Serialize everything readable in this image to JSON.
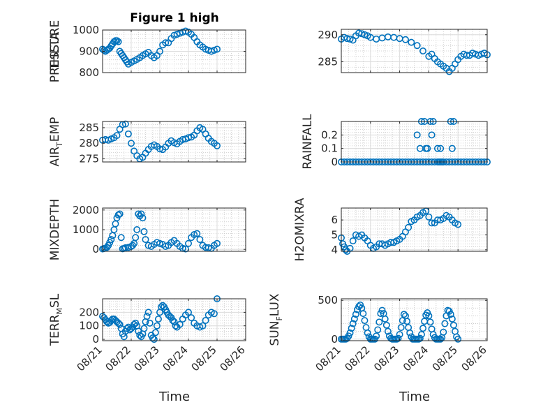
{
  "figure": {
    "title": "Figure 1 high",
    "xlabel": "Time",
    "marker_color": "#0072BD",
    "x_ticks": [
      "08/21",
      "08/22",
      "08/23",
      "08/24",
      "08/25",
      "08/26"
    ]
  },
  "chart_data": [
    {
      "type": "scatter",
      "title": "Figure 1 high",
      "ylabel": "PRESSURE",
      "xlim": [
        "08/21",
        "08/26"
      ],
      "ylim": [
        800,
        1000
      ],
      "yticks": [
        800,
        900,
        1000
      ],
      "grid": true,
      "series": [
        {
          "x": [
            0,
            0.05,
            0.1,
            0.15,
            0.2,
            0.25,
            0.3,
            0.35,
            0.4,
            0.45,
            0.5,
            0.55,
            0.6,
            0.65,
            0.7,
            0.75,
            0.8,
            0.85,
            0.9,
            1.0,
            1.1,
            1.2,
            1.3,
            1.4,
            1.5,
            1.6,
            1.7,
            1.8,
            1.9,
            2.0,
            2.1,
            2.2,
            2.3,
            2.4,
            2.5,
            2.6,
            2.7,
            2.8,
            2.9,
            3.0,
            3.1,
            3.2,
            3.3,
            3.4,
            3.5,
            3.6,
            3.7,
            3.8,
            3.9,
            4.0
          ],
          "y": [
            910,
            905,
            900,
            905,
            910,
            915,
            925,
            935,
            945,
            950,
            950,
            945,
            900,
            890,
            880,
            870,
            860,
            850,
            840,
            848,
            855,
            862,
            870,
            880,
            888,
            895,
            880,
            870,
            880,
            900,
            930,
            940,
            940,
            960,
            975,
            980,
            985,
            990,
            995,
            990,
            980,
            965,
            945,
            930,
            920,
            910,
            905,
            900,
            905,
            910
          ]
        }
      ]
    },
    {
      "type": "scatter",
      "ylabel": "THETA",
      "xlim": [
        "08/21",
        "08/26"
      ],
      "ylim": [
        283,
        291
      ],
      "yticks": [
        285,
        290
      ],
      "grid": true,
      "series": [
        {
          "x": [
            0,
            0.1,
            0.2,
            0.3,
            0.4,
            0.5,
            0.6,
            0.7,
            0.8,
            0.9,
            1.0,
            1.2,
            1.4,
            1.6,
            1.8,
            2.0,
            2.2,
            2.4,
            2.6,
            2.8,
            3.0,
            3.1,
            3.2,
            3.3,
            3.4,
            3.5,
            3.6,
            3.7,
            3.8,
            3.9,
            4.0,
            4.1,
            4.2,
            4.3,
            4.4,
            4.5,
            4.6,
            4.7,
            4.8,
            4.9,
            5.0
          ],
          "y": [
            289.2,
            289.5,
            289.3,
            289.2,
            289.0,
            289.8,
            290.3,
            290.2,
            290.0,
            289.8,
            289.5,
            289.2,
            289.4,
            289.6,
            289.5,
            289.3,
            289.1,
            288.6,
            288.0,
            287.0,
            286.0,
            286.4,
            285.6,
            285.0,
            284.6,
            284.2,
            283.8,
            283.2,
            283.8,
            284.6,
            285.4,
            286.0,
            286.4,
            286.2,
            286.2,
            286.6,
            286.4,
            286.2,
            286.4,
            286.6,
            286.3
          ]
        }
      ]
    },
    {
      "type": "scatter",
      "ylabel": "AIR_TEMP",
      "ylabel_subscript": "T",
      "xlim": [
        "08/21",
        "08/26"
      ],
      "ylim": [
        274,
        287
      ],
      "yticks": [
        275,
        280,
        285
      ],
      "grid": true,
      "series": [
        {
          "x": [
            0,
            0.1,
            0.2,
            0.3,
            0.4,
            0.5,
            0.6,
            0.7,
            0.8,
            0.9,
            1.0,
            1.1,
            1.2,
            1.3,
            1.4,
            1.5,
            1.6,
            1.7,
            1.8,
            1.9,
            2.0,
            2.1,
            2.2,
            2.3,
            2.4,
            2.5,
            2.6,
            2.7,
            2.8,
            2.9,
            3.0,
            3.1,
            3.2,
            3.3,
            3.4,
            3.5,
            3.6,
            3.7,
            3.8,
            3.9,
            4.0
          ],
          "y": [
            281.0,
            281.2,
            281.0,
            281.4,
            281.8,
            282.5,
            284.5,
            286.0,
            286.2,
            283.0,
            280.0,
            277.5,
            276.0,
            275.0,
            275.5,
            276.8,
            278.0,
            279.0,
            279.5,
            279.0,
            278.2,
            278.0,
            278.8,
            280.0,
            280.8,
            280.2,
            279.8,
            280.6,
            281.2,
            281.4,
            281.8,
            282.0,
            282.6,
            284.0,
            285.0,
            284.5,
            283.0,
            281.6,
            280.6,
            280.0,
            279.2
          ]
        }
      ]
    },
    {
      "type": "scatter",
      "ylabel": "RAINFALL",
      "xlim": [
        "08/21",
        "08/26"
      ],
      "ylim": [
        0,
        0.3
      ],
      "yticks": [
        0,
        0.1,
        0.2
      ],
      "grid": true,
      "series": [
        {
          "x": [
            0,
            0.1,
            0.2,
            0.3,
            0.4,
            0.5,
            0.6,
            0.7,
            0.8,
            0.9,
            1.0,
            1.1,
            1.2,
            1.3,
            1.4,
            1.5,
            1.6,
            1.7,
            1.8,
            1.9,
            2.0,
            2.1,
            2.2,
            2.3,
            2.4,
            2.5,
            2.6,
            2.7,
            2.8,
            2.9,
            3.0,
            3.1,
            3.2,
            3.3,
            3.4,
            3.5,
            3.6,
            3.7,
            3.8,
            3.9,
            4.0,
            4.1,
            4.2,
            4.3,
            4.4,
            4.5,
            4.6,
            4.7,
            4.8,
            4.9,
            5.0,
            5.1,
            5.2,
            5.3,
            5.4,
            5.5,
            5.6,
            5.7,
            5.8,
            5.9,
            6.0,
            6.1,
            6.2,
            6.3,
            6.4,
            6.5,
            6.6,
            6.7,
            6.8,
            6.9,
            7.0,
            7.1,
            7.2,
            7.3,
            7.4,
            7.5,
            7.6,
            7.7,
            7.8,
            7.9,
            8.0,
            8.1,
            8.2,
            8.3,
            8.4,
            8.5,
            8.6,
            8.7,
            8.8,
            8.9,
            9.0,
            9.1,
            9.2,
            9.3,
            9.4,
            9.5,
            9.6,
            9.7,
            9.8,
            9.9,
            10.0,
            2.6,
            2.7,
            2.75,
            2.85,
            2.9,
            2.95,
            3.05,
            3.1,
            3.15,
            3.3,
            3.35,
            3.4,
            3.45,
            3.75,
            3.8,
            3.85
          ],
          "y": [
            0,
            0,
            0,
            0,
            0,
            0,
            0,
            0,
            0,
            0,
            0,
            0,
            0,
            0,
            0,
            0,
            0,
            0,
            0,
            0,
            0,
            0,
            0,
            0,
            0,
            0,
            0,
            0,
            0,
            0,
            0,
            0,
            0,
            0,
            0,
            0,
            0,
            0,
            0,
            0,
            0,
            0,
            0,
            0,
            0,
            0,
            0,
            0,
            0,
            0,
            0,
            0,
            0,
            0,
            0,
            0,
            0,
            0,
            0,
            0,
            0,
            0,
            0,
            0,
            0,
            0,
            0,
            0,
            0,
            0,
            0,
            0,
            0,
            0,
            0,
            0,
            0,
            0,
            0,
            0,
            0,
            0,
            0,
            0,
            0,
            0,
            0,
            0,
            0,
            0,
            0,
            0,
            0,
            0,
            0,
            0,
            0,
            0,
            0,
            0,
            0,
            0.2,
            0.1,
            0.3,
            0.3,
            0.1,
            0.1,
            0.3,
            0.2,
            0.3,
            0.1,
            0,
            0.1,
            0,
            0.3,
            0.1,
            0.3
          ]
        }
      ]
    },
    {
      "type": "scatter",
      "ylabel": "MIXDEPTH",
      "xlim": [
        "08/21",
        "08/26"
      ],
      "ylim": [
        -100,
        2100
      ],
      "yticks": [
        0,
        1000,
        2000
      ],
      "grid": true,
      "series": [
        {
          "x": [
            0,
            0.05,
            0.1,
            0.15,
            0.2,
            0.25,
            0.3,
            0.35,
            0.4,
            0.45,
            0.5,
            0.55,
            0.6,
            0.65,
            0.7,
            0.75,
            0.8,
            0.9,
            1.0,
            1.05,
            1.1,
            1.15,
            1.2,
            1.25,
            1.3,
            1.35,
            1.4,
            1.45,
            1.5,
            1.6,
            1.7,
            1.8,
            1.9,
            2.0,
            2.1,
            2.2,
            2.3,
            2.4,
            2.5,
            2.6,
            2.7,
            2.8,
            2.9,
            3.0,
            3.1,
            3.2,
            3.3,
            3.4,
            3.5,
            3.6,
            3.7,
            3.8,
            3.9,
            4.0
          ],
          "y": [
            20,
            40,
            60,
            100,
            200,
            350,
            500,
            700,
            1000,
            1300,
            1600,
            1750,
            1800,
            600,
            30,
            50,
            80,
            100,
            150,
            200,
            300,
            600,
            1000,
            1800,
            1700,
            1800,
            1600,
            900,
            500,
            200,
            150,
            250,
            350,
            300,
            250,
            150,
            200,
            350,
            450,
            300,
            150,
            50,
            20,
            300,
            600,
            750,
            800,
            500,
            200,
            100,
            80,
            50,
            200,
            300
          ]
        }
      ]
    },
    {
      "type": "scatter",
      "ylabel": "H2OMIXRA",
      "xlim": [
        "08/21",
        "08/26"
      ],
      "ylim": [
        3.9,
        6.8
      ],
      "yticks": [
        4,
        5,
        6
      ],
      "grid": true,
      "series": [
        {
          "x": [
            0,
            0.05,
            0.1,
            0.15,
            0.2,
            0.3,
            0.4,
            0.5,
            0.6,
            0.7,
            0.8,
            0.9,
            1.0,
            1.1,
            1.2,
            1.3,
            1.4,
            1.5,
            1.6,
            1.7,
            1.8,
            1.9,
            2.0,
            2.1,
            2.2,
            2.3,
            2.4,
            2.5,
            2.6,
            2.7,
            2.8,
            2.9,
            3.0,
            3.1,
            3.2,
            3.3,
            3.4,
            3.5,
            3.6,
            3.7,
            3.8,
            3.9,
            4.0
          ],
          "y": [
            4.8,
            4.4,
            4.2,
            4.0,
            3.9,
            4.1,
            4.6,
            5.0,
            4.9,
            5.0,
            4.8,
            4.6,
            4.3,
            4.1,
            4.2,
            4.4,
            4.4,
            4.3,
            4.4,
            4.5,
            4.5,
            4.6,
            4.7,
            4.9,
            5.2,
            5.5,
            5.9,
            6.0,
            6.2,
            6.3,
            6.5,
            6.6,
            6.2,
            5.8,
            5.8,
            6.0,
            6.0,
            6.1,
            6.3,
            6.2,
            6.0,
            5.8,
            5.7
          ]
        }
      ]
    },
    {
      "type": "scatter",
      "ylabel": "TERR_MSL",
      "ylabel_subscript": "M",
      "xlim": [
        "08/21",
        "08/26"
      ],
      "ylim": [
        -10,
        300
      ],
      "yticks": [
        0,
        100,
        200
      ],
      "grid": true,
      "series": [
        {
          "x": [
            0,
            0.05,
            0.1,
            0.15,
            0.2,
            0.25,
            0.3,
            0.35,
            0.4,
            0.45,
            0.5,
            0.55,
            0.6,
            0.65,
            0.7,
            0.75,
            0.8,
            0.85,
            0.9,
            0.95,
            1.0,
            1.05,
            1.1,
            1.15,
            1.2,
            1.25,
            1.3,
            1.35,
            1.4,
            1.45,
            1.5,
            1.55,
            1.6,
            1.65,
            1.7,
            1.75,
            1.8,
            1.85,
            1.9,
            1.95,
            2.0,
            2.05,
            2.1,
            2.15,
            2.2,
            2.25,
            2.3,
            2.35,
            2.4,
            2.45,
            2.5,
            2.55,
            2.6,
            2.7,
            2.8,
            2.9,
            3.0,
            3.1,
            3.2,
            3.3,
            3.4,
            3.5,
            3.6,
            3.7,
            3.8,
            3.9,
            4.0
          ],
          "y": [
            170,
            160,
            145,
            130,
            120,
            125,
            140,
            150,
            150,
            140,
            130,
            120,
            110,
            80,
            40,
            20,
            60,
            80,
            90,
            70,
            80,
            90,
            110,
            120,
            100,
            60,
            30,
            20,
            40,
            80,
            130,
            170,
            200,
            120,
            30,
            10,
            0,
            50,
            100,
            150,
            200,
            240,
            250,
            240,
            220,
            200,
            180,
            170,
            160,
            140,
            130,
            100,
            90,
            110,
            150,
            180,
            200,
            160,
            120,
            100,
            90,
            100,
            140,
            180,
            200,
            190,
            300
          ]
        }
      ]
    },
    {
      "type": "scatter",
      "ylabel": "SUN_FLUX",
      "ylabel_subscript": "F",
      "xlim": [
        "08/21",
        "08/26"
      ],
      "ylim": [
        -20,
        520
      ],
      "yticks": [
        0,
        500
      ],
      "grid": true,
      "series": [
        {
          "x": [
            0,
            0.05,
            0.1,
            0.15,
            0.2,
            0.25,
            0.3,
            0.35,
            0.4,
            0.45,
            0.5,
            0.55,
            0.6,
            0.65,
            0.7,
            0.75,
            0.8,
            0.85,
            0.9,
            0.95,
            1.0,
            1.05,
            1.1,
            1.15,
            1.2,
            1.25,
            1.3,
            1.35,
            1.4,
            1.45,
            1.5,
            1.55,
            1.6,
            1.65,
            1.7,
            1.75,
            1.8,
            1.85,
            1.9,
            1.95,
            2.0,
            2.05,
            2.1,
            2.15,
            2.2,
            2.25,
            2.3,
            2.35,
            2.4,
            2.45,
            2.5,
            2.55,
            2.6,
            2.65,
            2.7,
            2.75,
            2.8,
            2.85,
            2.9,
            2.95,
            3.0,
            3.05,
            3.1,
            3.15,
            3.2,
            3.25,
            3.3,
            3.35,
            3.4,
            3.45,
            3.5,
            3.55,
            3.6,
            3.65,
            3.7,
            3.75,
            3.8,
            3.85,
            3.9,
            3.95,
            4.0
          ],
          "y": [
            0,
            0,
            0,
            0,
            10,
            40,
            80,
            140,
            200,
            260,
            320,
            380,
            420,
            440,
            400,
            330,
            240,
            150,
            80,
            30,
            0,
            0,
            0,
            0,
            40,
            120,
            220,
            330,
            370,
            330,
            260,
            180,
            100,
            40,
            10,
            0,
            0,
            0,
            0,
            10,
            60,
            150,
            240,
            320,
            300,
            230,
            150,
            80,
            30,
            0,
            0,
            0,
            0,
            0,
            10,
            60,
            140,
            230,
            310,
            340,
            300,
            220,
            130,
            60,
            20,
            0,
            0,
            0,
            0,
            20,
            90,
            200,
            300,
            370,
            360,
            320,
            260,
            180,
            100,
            30,
            0
          ]
        }
      ]
    }
  ]
}
